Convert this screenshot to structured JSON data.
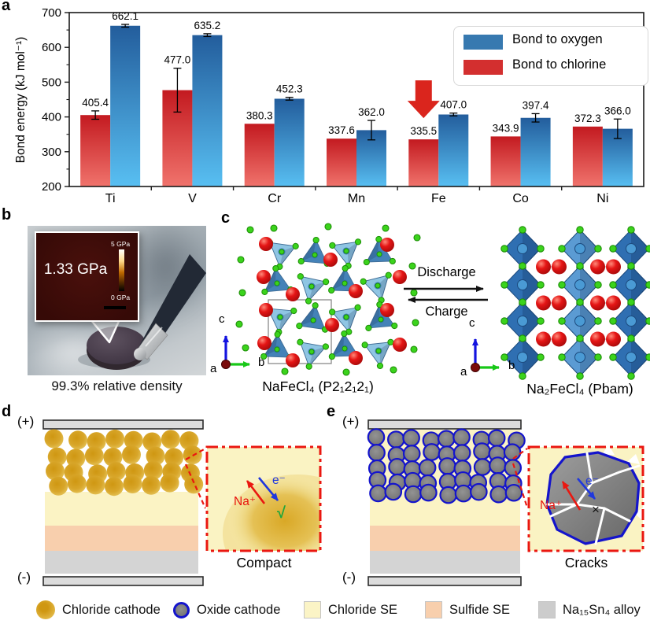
{
  "panel_labels": {
    "a": "a",
    "b": "b",
    "c": "c",
    "d": "d",
    "e": "e"
  },
  "chart_data": {
    "type": "bar",
    "title": "",
    "ylabel": "Bond energy (kJ mol⁻¹)",
    "xlabel": "",
    "ylim": [
      200,
      700
    ],
    "ytick_step": 100,
    "grid": false,
    "legend_position": "upper right",
    "categories": [
      "Ti",
      "V",
      "Cr",
      "Mn",
      "Fe",
      "Co",
      "Ni"
    ],
    "series": [
      {
        "name": "Bond to chlorine",
        "values": [
          405.4,
          477.0,
          380.3,
          337.6,
          335.5,
          343.9,
          372.3
        ],
        "errors": [
          12,
          63,
          0,
          0,
          0,
          0,
          0
        ],
        "color": "#d32f2f",
        "gradient": [
          "#c31a20",
          "#f0736c"
        ]
      },
      {
        "name": "Bond to oxygen",
        "values": [
          662.1,
          635.2,
          452.3,
          362.0,
          407.0,
          397.4,
          366.0
        ],
        "errors": [
          4,
          4,
          4,
          28,
          4,
          12,
          28
        ],
        "color": "#3779b0",
        "gradient": [
          "#235d9c",
          "#58bff2"
        ]
      }
    ],
    "legend": [
      {
        "label": "Bond to oxygen",
        "color": "#3779b0"
      },
      {
        "label": "Bond to chlorine",
        "color": "#d32f2f"
      }
    ],
    "annotation": {
      "type": "down-arrow",
      "category": "Fe",
      "series": "Bond to chlorine",
      "color": "#da251d"
    }
  },
  "panel_b": {
    "pressure": "1.33 GPa",
    "colorbar_top": "5 GPa",
    "colorbar_bottom": "0 GPa",
    "caption": "99.3% relative density"
  },
  "panel_c": {
    "left_formula": "NaFeCl₄ (P2₁2₁2₁)",
    "right_formula": "Na₂FeCl₄ (Pbam)",
    "forward_label": "Discharge",
    "reverse_label": "Charge",
    "axis": {
      "c": "c",
      "b": "b",
      "a": "a"
    }
  },
  "panel_d": {
    "positive": "(+)",
    "negative": "(-)",
    "ion": "Na⁺",
    "electron": "e⁻",
    "ok_mark": "√",
    "caption": "Compact"
  },
  "panel_e": {
    "positive": "(+)",
    "negative": "(-)",
    "ion": "Na⁺",
    "electron": "e⁻",
    "fail_mark": "×",
    "caption": "Cracks"
  },
  "legend": {
    "items": [
      {
        "label": "Chloride cathode",
        "swatch": "gold-circle",
        "color": "#d9a51e"
      },
      {
        "label": "Oxide cathode",
        "swatch": "gray-circle-blue-ring",
        "color": "#7d7d7d",
        "ring_color": "#1414cc"
      },
      {
        "label": "Chloride SE",
        "swatch": "square",
        "color": "#fbf4c6"
      },
      {
        "label": "Sulfide SE",
        "swatch": "square",
        "color": "#f8cfad"
      },
      {
        "label": "Na₁₅Sn₄ alloy",
        "swatch": "square",
        "color": "#cccccc"
      }
    ]
  }
}
